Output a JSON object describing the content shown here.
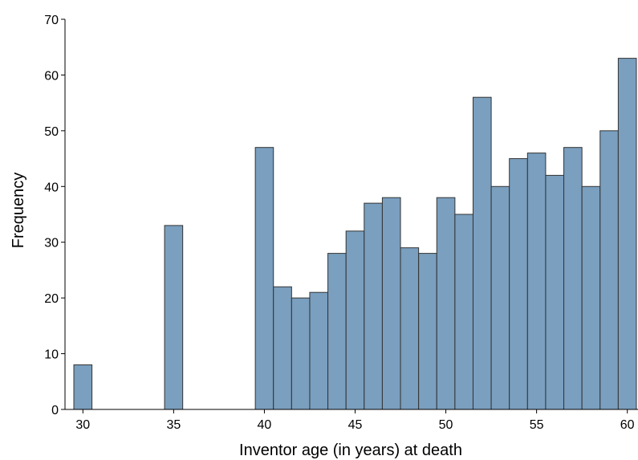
{
  "chart_data": {
    "type": "bar",
    "title": "",
    "xlabel": "Inventor age (in years) at death",
    "ylabel": "Frequency",
    "xlim": [
      29.5,
      60.5
    ],
    "ylim": [
      0,
      70
    ],
    "x_ticks": [
      30,
      35,
      40,
      45,
      50,
      55,
      60
    ],
    "y_ticks": [
      0,
      10,
      20,
      30,
      40,
      50,
      60,
      70
    ],
    "grid": false,
    "bar_color": "#7a9fbf",
    "bar_edge_color": "#333333",
    "x": [
      30,
      35,
      40,
      41,
      42,
      43,
      44,
      45,
      46,
      47,
      48,
      49,
      50,
      51,
      52,
      53,
      54,
      55,
      56,
      57,
      58,
      59,
      60
    ],
    "values": [
      8,
      33,
      47,
      22,
      20,
      21,
      28,
      32,
      37,
      38,
      29,
      28,
      38,
      35,
      56,
      40,
      45,
      46,
      42,
      47,
      40,
      50,
      63
    ]
  }
}
